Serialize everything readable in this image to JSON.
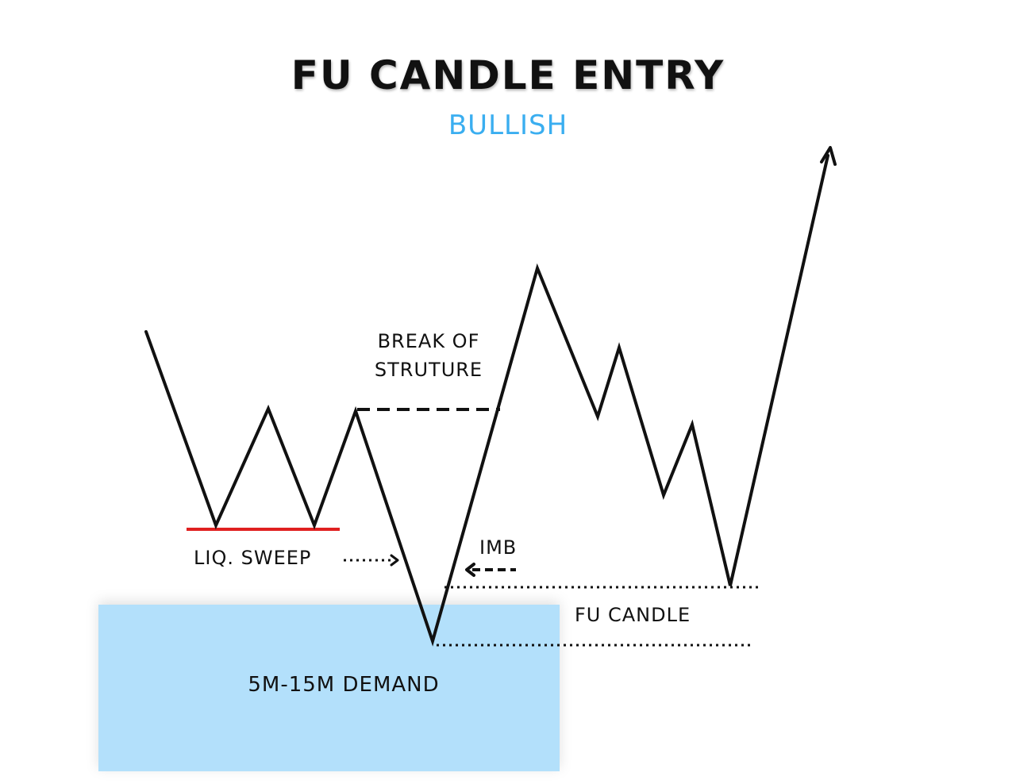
{
  "title": "FU CANDLE ENTRY",
  "subtitle": "BULLISH",
  "colors": {
    "subtitle": "#3aaef0",
    "demand_zone": "#b3e0fb",
    "liquidity_line": "#e02020",
    "ink": "#111111"
  },
  "labels": {
    "break_of_structure": [
      "BREAK OF",
      "STRUTURE"
    ],
    "liquidity_sweep": "LIQ. SWEEP",
    "imbalance": "IMB",
    "fu_candle": "FU CANDLE",
    "demand_zone": "5M-15M DEMAND"
  }
}
